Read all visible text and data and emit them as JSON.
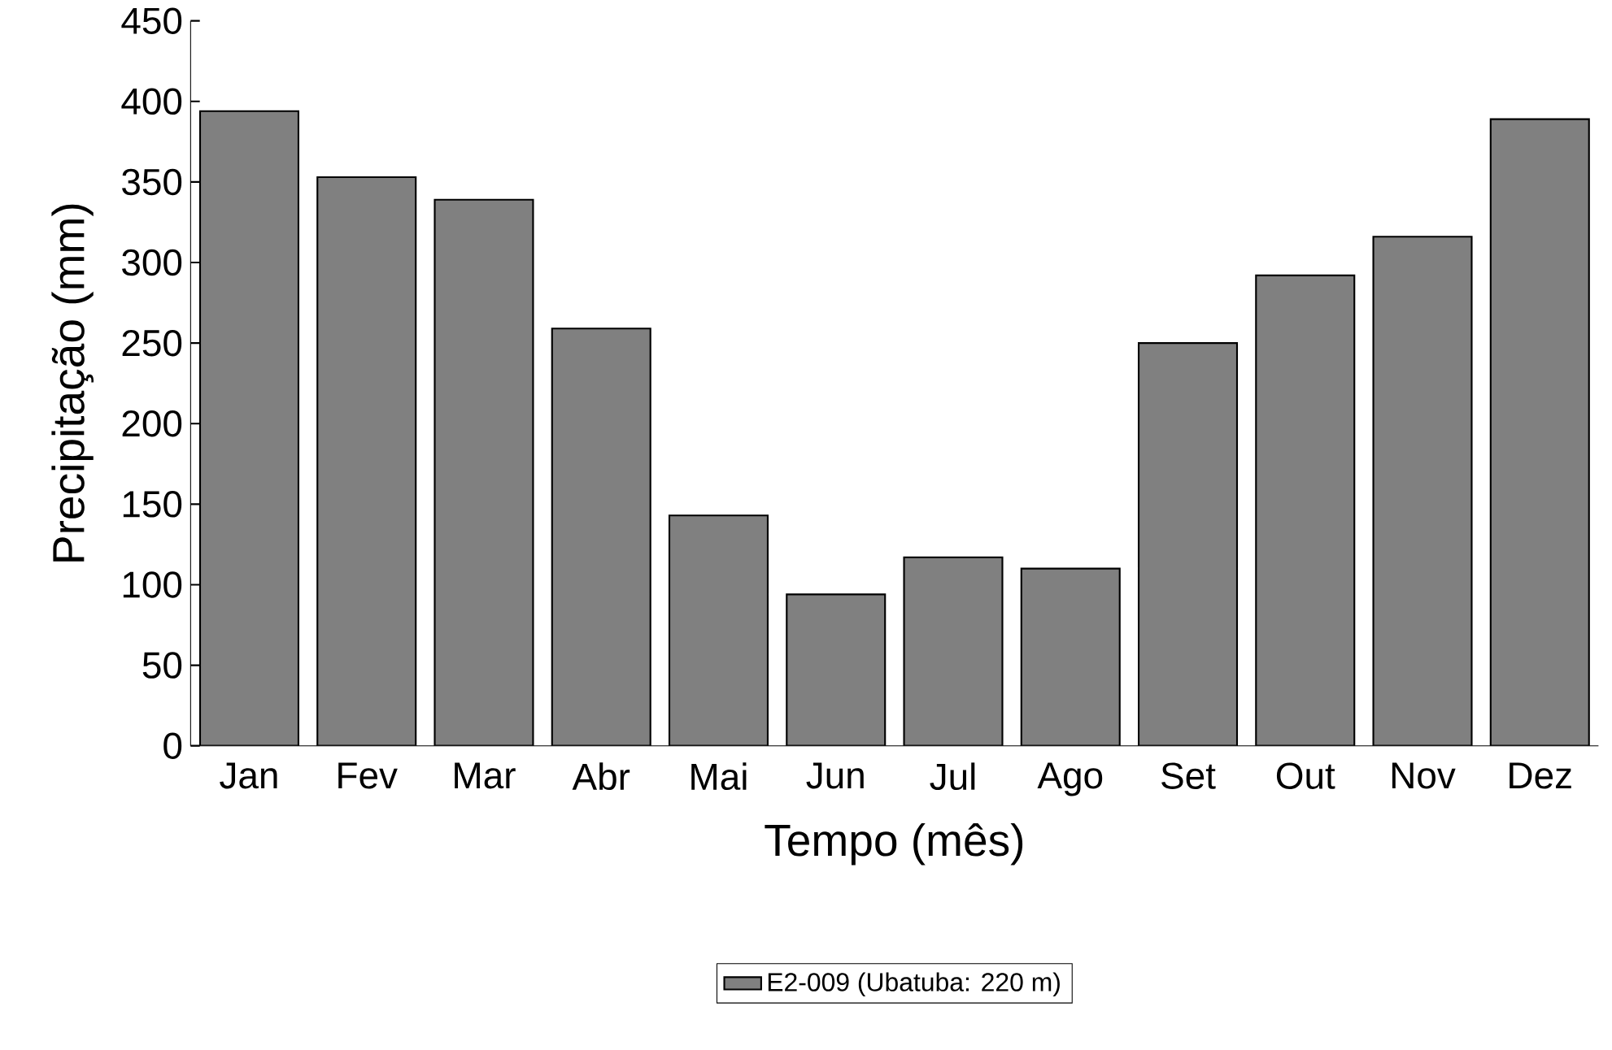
{
  "chart_data": {
    "type": "bar",
    "xlabel": "Tempo (mês)",
    "ylabel": "Precipitação (mm)",
    "categories": [
      "Jan",
      "Fev",
      "Mar",
      "Abr",
      "Mai",
      "Jun",
      "Jul",
      "Ago",
      "Set",
      "Out",
      "Nov",
      "Dez"
    ],
    "series": [
      {
        "name": "E2-009 (Ubatuba: 220 m)",
        "color": "#808080",
        "values": [
          394,
          353,
          339,
          259,
          143,
          94,
          117,
          110,
          250,
          292,
          316,
          389
        ]
      }
    ],
    "ylim": [
      0,
      450
    ],
    "yticks": [
      0,
      50,
      100,
      150,
      200,
      250,
      300,
      350,
      400,
      450
    ],
    "grid": false,
    "legend": "bottom"
  }
}
